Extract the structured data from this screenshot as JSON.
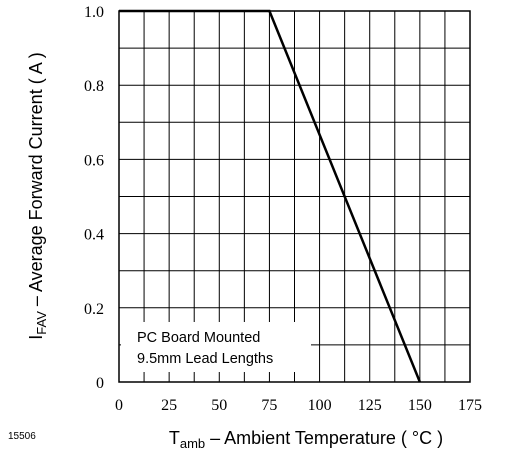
{
  "chart_data": {
    "type": "line",
    "title": "",
    "xlabel": {
      "prefix": "T",
      "subscript": "amb",
      "suffix": " – Ambient Temperature ( °C )"
    },
    "ylabel": {
      "prefix": "I",
      "subscript": "FAV",
      "suffix": " – Average Forward Current ( A )"
    },
    "xlim": [
      0,
      175
    ],
    "ylim": [
      0,
      1.0
    ],
    "x_tick_labels": [
      "0",
      "25",
      "50",
      "75",
      "100",
      "125",
      "150",
      "175"
    ],
    "x_tick_values": [
      0,
      25,
      50,
      75,
      100,
      125,
      150,
      175
    ],
    "y_tick_labels": [
      "0",
      "0.2",
      "0.4",
      "0.6",
      "0.8",
      "1.0"
    ],
    "y_tick_values": [
      0,
      0.2,
      0.4,
      0.6,
      0.8,
      1.0
    ],
    "x_grid_step": 12.5,
    "y_grid_step": 0.1,
    "grid": true,
    "series": [
      {
        "x": [
          0,
          75,
          150
        ],
        "y": [
          1.0,
          1.0,
          0
        ]
      }
    ],
    "annotation": {
      "lines": [
        "PC Board Mounted",
        "9.5mm Lead Lengths"
      ],
      "placement": "bottom-left"
    }
  },
  "figure_number": "15506"
}
